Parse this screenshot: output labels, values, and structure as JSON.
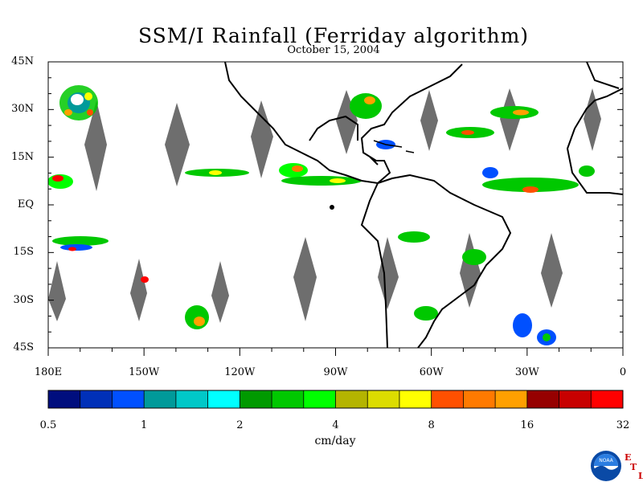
{
  "title": "SSM/I Rainfall (Ferriday algorithm)",
  "date": "October 15, 2004",
  "lat_labels": [
    "45N",
    "30N",
    "15N",
    "EQ",
    "15S",
    "30S",
    "45S"
  ],
  "lat_values": [
    45,
    30,
    15,
    0,
    -15,
    -30,
    -45
  ],
  "lon_labels": [
    "180E",
    "150W",
    "120W",
    "90W",
    "60W",
    "30W",
    "0"
  ],
  "lon_values": [
    -180,
    -150,
    -120,
    -90,
    -60,
    -30,
    0
  ],
  "colorbar": {
    "colors": [
      "#000e7e",
      "#0030b8",
      "#0050ff",
      "#009a9a",
      "#00c8c8",
      "#00ffff",
      "#009a00",
      "#00c800",
      "#00ff00",
      "#b4b400",
      "#dcdc00",
      "#ffff00",
      "#ff5000",
      "#ff7a00",
      "#ffa000",
      "#960000",
      "#c80000",
      "#ff0000"
    ],
    "tick_labels": [
      "0.5",
      "1",
      "2",
      "4",
      "8",
      "16",
      "32"
    ],
    "units": "cm/day"
  },
  "logo": {
    "text": "NOAA",
    "side_letters": [
      "E",
      "T",
      "L"
    ]
  }
}
